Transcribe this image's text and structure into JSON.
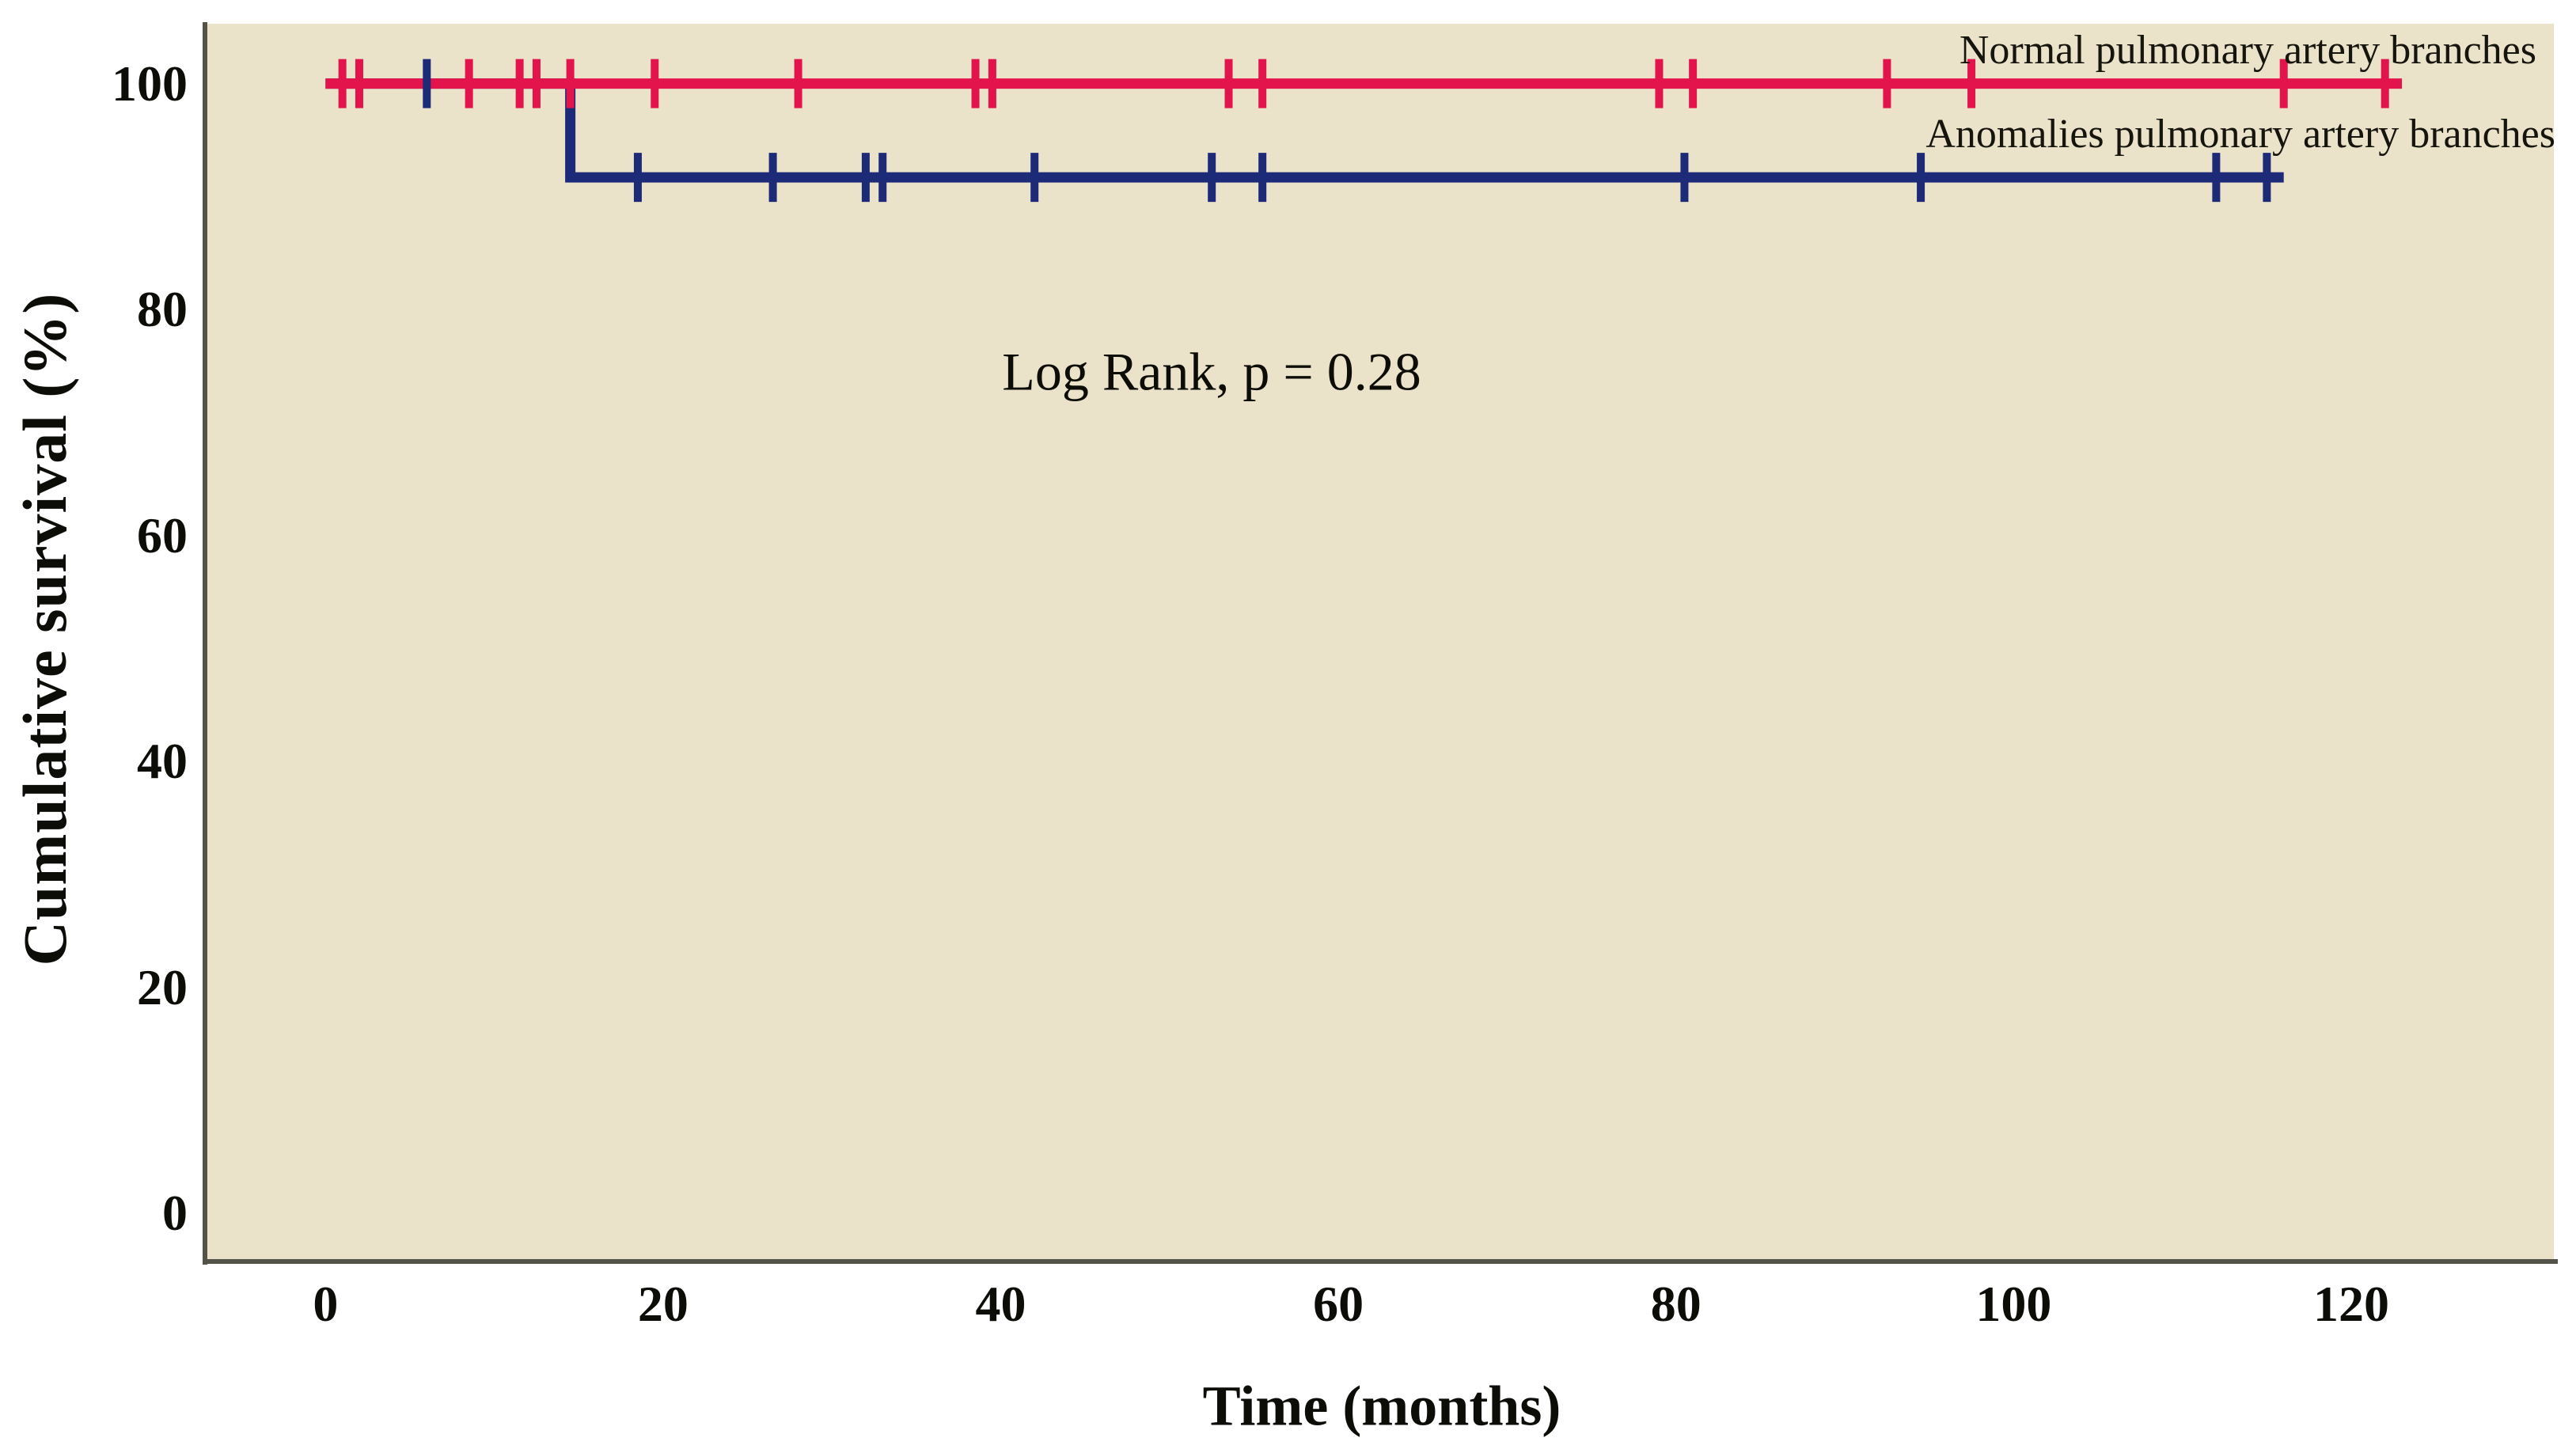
{
  "colors": {
    "figure_background": "#ffffff",
    "plot_background": "#eae2c9",
    "axis_line": "#53534a",
    "text": "#0d0d08",
    "normal_series": "#e3134b",
    "anomalies_series": "#1c2a78"
  },
  "chart_data": {
    "type": "line",
    "subtype": "kaplan-meier-step",
    "title": "",
    "xlabel": "Time (months)",
    "ylabel": "Cumulative survival (%)",
    "x_ticks": [
      0,
      20,
      40,
      60,
      80,
      100,
      120
    ],
    "y_ticks": [
      0,
      20,
      40,
      60,
      80,
      100
    ],
    "xlim": [
      -7,
      132
    ],
    "ylim": [
      -4.2,
      105.3
    ],
    "grid": false,
    "legend_position": "top-right-inline",
    "annotation": {
      "text": "Log Rank, p = 0.28",
      "x": 52.5,
      "y": 74.5
    },
    "series": [
      {
        "name": "Anomalies pulmonary artery branches",
        "color": "#1c2a78",
        "points": [
          [
            0,
            100
          ],
          [
            14.5,
            100
          ],
          [
            14.5,
            91.7
          ],
          [
            116,
            91.7
          ]
        ],
        "censor_marks": [
          [
            6,
            100
          ],
          [
            18.5,
            91.7
          ],
          [
            26.5,
            91.7
          ],
          [
            32,
            91.7
          ],
          [
            33,
            91.7
          ],
          [
            42,
            91.7
          ],
          [
            52.5,
            91.7
          ],
          [
            55.5,
            91.7
          ],
          [
            80.5,
            91.7
          ],
          [
            94.5,
            91.7
          ],
          [
            112,
            91.7
          ],
          [
            115,
            91.7
          ]
        ]
      },
      {
        "name": "Normal pulmonary artery branches",
        "color": "#e3134b",
        "points": [
          [
            0,
            100
          ],
          [
            123,
            100
          ]
        ],
        "censor_marks": [
          [
            1,
            100
          ],
          [
            2,
            100
          ],
          [
            8.5,
            100
          ],
          [
            11.5,
            100
          ],
          [
            12.5,
            100
          ],
          [
            14.5,
            100
          ],
          [
            19.5,
            100
          ],
          [
            28,
            100
          ],
          [
            38.5,
            100
          ],
          [
            39.5,
            100
          ],
          [
            53.5,
            100
          ],
          [
            55.5,
            100
          ],
          [
            79,
            100
          ],
          [
            81,
            100
          ],
          [
            92.5,
            100
          ],
          [
            97.5,
            100
          ],
          [
            116,
            100
          ],
          [
            122,
            100
          ]
        ]
      }
    ]
  }
}
